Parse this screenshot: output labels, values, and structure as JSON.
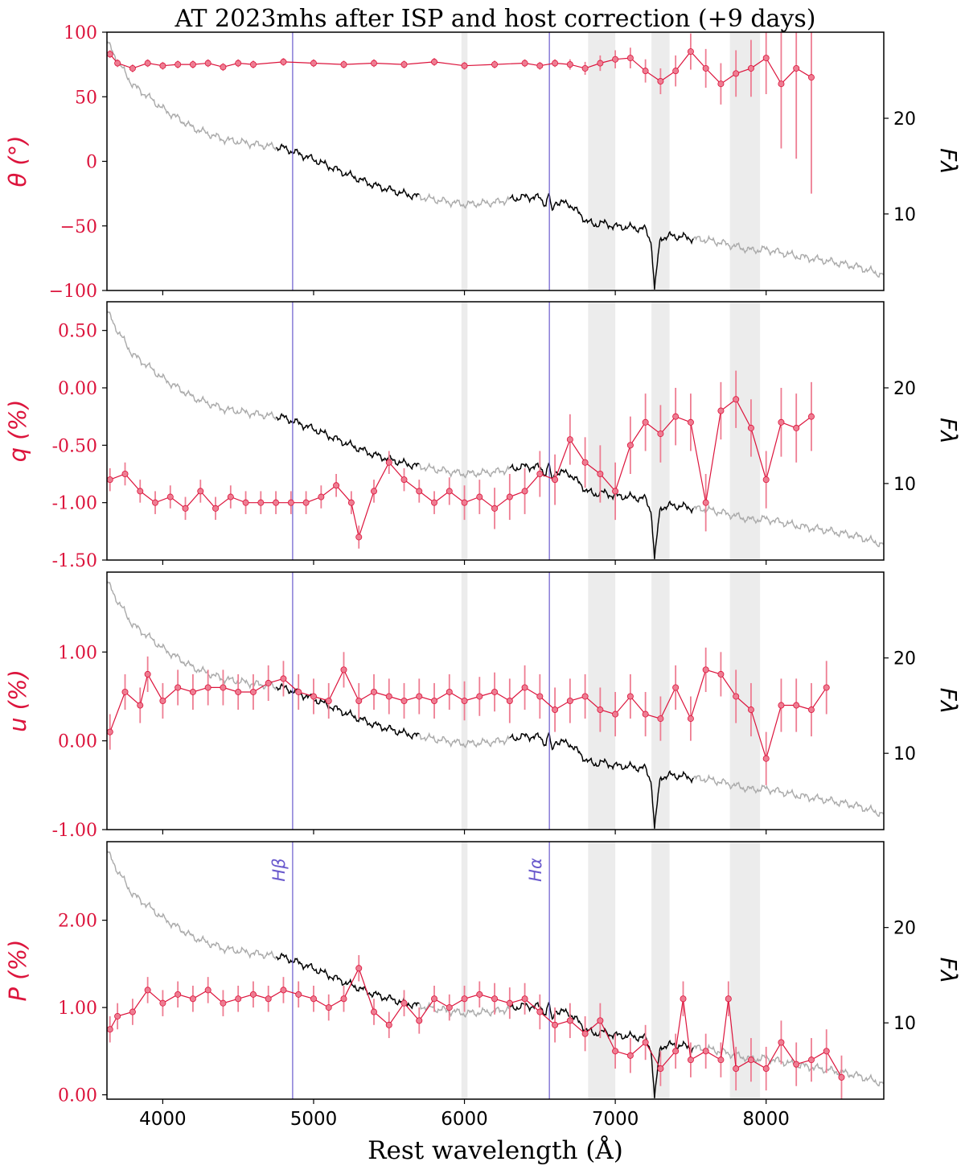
{
  "chart_data": {
    "type": "line",
    "title": "AT 2023mhs after ISP and host correction (+9 days)",
    "xlabel": "Rest wavelength (Å)",
    "xlim": [
      3630,
      8780
    ],
    "xticks": [
      4000,
      5000,
      6000,
      7000,
      8000
    ],
    "xtick_labels": [
      "4000",
      "5000",
      "6000",
      "7000",
      "8000"
    ],
    "colors": {
      "pol": "#dc143c",
      "pol_err": "#ee7d92",
      "flux_black": "#000000",
      "flux_gray": "#aaaaaa",
      "lines": "#6a5acd",
      "band": "#ececec"
    },
    "line_markers": [
      {
        "label": "Hβ",
        "wavelength": 4861
      },
      {
        "label": "Hα",
        "wavelength": 6563
      }
    ],
    "shaded_bands": [
      [
        5980,
        6020
      ],
      [
        6820,
        7000
      ],
      [
        7240,
        7360
      ],
      [
        7760,
        7960
      ]
    ],
    "flux_axis": {
      "label": "Fλ",
      "ylim": [
        2,
        29
      ],
      "ticks": [
        10,
        20
      ],
      "tick_labels": [
        "10",
        "20"
      ],
      "black_ranges": [
        [
          4750,
          5700
        ],
        [
          6300,
          7520
        ]
      ],
      "x": [
        3630,
        3700,
        3800,
        3900,
        4000,
        4200,
        4400,
        4600,
        4800,
        5000,
        5200,
        5400,
        5600,
        5800,
        6000,
        6200,
        6400,
        6500,
        6540,
        6560,
        6580,
        6600,
        6700,
        6800,
        6860,
        6900,
        7000,
        7100,
        7200,
        7240,
        7260,
        7280,
        7300,
        7360,
        7450,
        7520,
        7600,
        7700,
        7800,
        7900,
        8000,
        8200,
        8400,
        8600,
        8780
      ],
      "y": [
        28.0,
        26.0,
        23.5,
        22.3,
        21.0,
        19.0,
        17.8,
        17.3,
        16.9,
        15.7,
        14.3,
        13.0,
        12.1,
        11.5,
        11.0,
        11.2,
        11.8,
        11.7,
        11.0,
        12.2,
        10.0,
        11.3,
        11.0,
        9.4,
        8.8,
        9.1,
        8.7,
        8.6,
        8.4,
        7.0,
        2.0,
        5.0,
        7.5,
        7.7,
        7.6,
        7.4,
        7.3,
        7.0,
        6.6,
        6.2,
        6.3,
        5.6,
        5.1,
        4.5,
        3.6
      ]
    },
    "series": [
      {
        "ylabel": "θ (°)",
        "ylim": [
          -100,
          100
        ],
        "yticks": [
          100,
          50,
          0,
          -50,
          -100
        ],
        "ytick_labels": [
          "100",
          "50",
          "0",
          "−50",
          "−100"
        ],
        "err": [
          3,
          3,
          3,
          3,
          3,
          3,
          3,
          3,
          3,
          3,
          3,
          3,
          3,
          3,
          3,
          3,
          3,
          3,
          3,
          3,
          3,
          3,
          4,
          5,
          6,
          7,
          8,
          9,
          10,
          12,
          14,
          15,
          16,
          18,
          22,
          28,
          50,
          70,
          90
        ],
        "x": [
          3650,
          3700,
          3800,
          3900,
          4000,
          4100,
          4200,
          4300,
          4400,
          4500,
          4600,
          4800,
          5000,
          5200,
          5400,
          5600,
          5800,
          6000,
          6200,
          6400,
          6500,
          6600,
          6700,
          6800,
          6900,
          7000,
          7100,
          7200,
          7300,
          7400,
          7500,
          7600,
          7700,
          7800,
          7900,
          8000,
          8100,
          8200,
          8300
        ],
        "y": [
          83,
          76,
          72,
          76,
          74,
          75,
          75,
          76,
          73,
          76,
          75,
          77,
          76,
          75,
          76,
          75,
          77,
          74,
          75,
          76,
          74,
          76,
          75,
          72,
          76,
          79,
          80,
          70,
          62,
          70,
          85,
          72,
          60,
          68,
          72,
          80,
          60,
          72,
          65
        ]
      },
      {
        "ylabel": "q (%)",
        "ylim": [
          -1.5,
          0.75
        ],
        "yticks": [
          0.5,
          0.0,
          -0.5,
          -1.0,
          -1.5
        ],
        "ytick_labels": [
          "0.50",
          "0.00",
          "-0.50",
          "-1.00",
          "-1.50"
        ],
        "err": [
          0.1,
          0.1,
          0.1,
          0.1,
          0.1,
          0.1,
          0.1,
          0.1,
          0.1,
          0.1,
          0.1,
          0.1,
          0.1,
          0.1,
          0.1,
          0.1,
          0.1,
          0.1,
          0.1,
          0.1,
          0.1,
          0.1,
          0.1,
          0.12,
          0.15,
          0.15,
          0.18,
          0.2,
          0.2,
          0.2,
          0.22,
          0.22,
          0.22,
          0.25,
          0.25,
          0.25,
          0.25,
          0.25,
          0.25,
          0.25,
          0.25,
          0.25,
          0.25,
          0.25,
          0.25,
          0.3,
          0.3,
          0.3
        ],
        "x": [
          3650,
          3750,
          3850,
          3950,
          4050,
          4150,
          4250,
          4350,
          4450,
          4550,
          4650,
          4750,
          4850,
          4950,
          5050,
          5150,
          5250,
          5300,
          5400,
          5500,
          5600,
          5700,
          5800,
          5900,
          6000,
          6100,
          6200,
          6300,
          6400,
          6500,
          6600,
          6700,
          6800,
          6900,
          7000,
          7100,
          7200,
          7300,
          7400,
          7500,
          7600,
          7700,
          7800,
          7900,
          8000,
          8100,
          8200,
          8300
        ],
        "y": [
          -0.8,
          -0.75,
          -0.9,
          -1.0,
          -0.95,
          -1.05,
          -0.9,
          -1.05,
          -0.95,
          -1.0,
          -1.0,
          -1.0,
          -1.0,
          -1.0,
          -0.95,
          -0.85,
          -1.0,
          -1.3,
          -0.9,
          -0.65,
          -0.8,
          -0.9,
          -1.0,
          -0.9,
          -1.0,
          -0.95,
          -1.05,
          -0.95,
          -0.9,
          -0.75,
          -0.8,
          -0.45,
          -0.65,
          -0.75,
          -0.9,
          -0.5,
          -0.3,
          -0.4,
          -0.25,
          -0.3,
          -1.0,
          -0.2,
          -0.1,
          -0.35,
          -0.8,
          -0.3,
          -0.35,
          -0.25
        ]
      },
      {
        "ylabel": "u (%)",
        "ylim": [
          -1.0,
          1.9
        ],
        "yticks": [
          1.0,
          0.0,
          -1.0
        ],
        "ytick_labels": [
          "1.00",
          "0.00",
          "-1.00"
        ],
        "err": [
          0.2,
          0.2,
          0.2,
          0.2,
          0.2,
          0.2,
          0.2,
          0.2,
          0.2,
          0.2,
          0.2,
          0.2,
          0.2,
          0.2,
          0.2,
          0.2,
          0.2,
          0.2,
          0.2,
          0.2,
          0.2,
          0.2,
          0.2,
          0.2,
          0.22,
          0.22,
          0.22,
          0.25,
          0.25,
          0.25,
          0.25,
          0.25,
          0.25,
          0.25,
          0.25,
          0.25,
          0.25,
          0.25,
          0.25,
          0.25,
          0.25,
          0.25,
          0.3,
          0.3,
          0.3,
          0.3,
          0.3,
          0.3,
          0.3
        ],
        "x": [
          3650,
          3750,
          3850,
          3900,
          4000,
          4100,
          4200,
          4300,
          4400,
          4500,
          4600,
          4700,
          4800,
          4900,
          5000,
          5100,
          5200,
          5300,
          5400,
          5500,
          5600,
          5700,
          5800,
          5900,
          6000,
          6100,
          6200,
          6300,
          6400,
          6500,
          6600,
          6700,
          6800,
          6900,
          7000,
          7100,
          7200,
          7300,
          7400,
          7500,
          7600,
          7700,
          7800,
          7900,
          8000,
          8100,
          8200,
          8300,
          8400
        ],
        "y": [
          0.1,
          0.55,
          0.4,
          0.75,
          0.45,
          0.6,
          0.55,
          0.6,
          0.6,
          0.55,
          0.55,
          0.65,
          0.7,
          0.55,
          0.5,
          0.45,
          0.8,
          0.45,
          0.55,
          0.5,
          0.45,
          0.5,
          0.45,
          0.55,
          0.45,
          0.5,
          0.55,
          0.45,
          0.6,
          0.5,
          0.35,
          0.45,
          0.5,
          0.35,
          0.3,
          0.5,
          0.3,
          0.25,
          0.6,
          0.25,
          0.8,
          0.75,
          0.5,
          0.35,
          -0.2,
          0.4,
          0.4,
          0.35,
          0.6
        ]
      },
      {
        "ylabel": "P (%)",
        "ylim": [
          -0.05,
          2.9
        ],
        "yticks": [
          2.0,
          1.0,
          0.0
        ],
        "ytick_labels": [
          "2.00",
          "1.00",
          "0.00"
        ],
        "err": [
          0.15,
          0.15,
          0.15,
          0.15,
          0.15,
          0.15,
          0.15,
          0.15,
          0.15,
          0.15,
          0.15,
          0.15,
          0.15,
          0.15,
          0.15,
          0.15,
          0.15,
          0.15,
          0.15,
          0.15,
          0.15,
          0.15,
          0.15,
          0.15,
          0.15,
          0.15,
          0.18,
          0.18,
          0.18,
          0.2,
          0.2,
          0.2,
          0.2,
          0.2,
          0.2,
          0.2,
          0.2,
          0.2,
          0.2,
          0.2,
          0.2,
          0.2,
          0.2,
          0.2,
          0.25,
          0.25,
          0.25,
          0.25,
          0.25,
          0.25,
          0.25,
          0.25
        ],
        "x": [
          3650,
          3700,
          3800,
          3900,
          4000,
          4100,
          4200,
          4300,
          4400,
          4500,
          4600,
          4700,
          4800,
          4900,
          5000,
          5100,
          5200,
          5300,
          5400,
          5500,
          5600,
          5700,
          5800,
          5900,
          6000,
          6100,
          6200,
          6300,
          6400,
          6500,
          6600,
          6700,
          6800,
          6900,
          7000,
          7100,
          7200,
          7300,
          7400,
          7450,
          7500,
          7600,
          7700,
          7750,
          7800,
          7900,
          8000,
          8100,
          8200,
          8300,
          8400,
          8500
        ],
        "y": [
          0.75,
          0.9,
          0.95,
          1.2,
          1.05,
          1.15,
          1.1,
          1.2,
          1.05,
          1.1,
          1.15,
          1.1,
          1.2,
          1.15,
          1.1,
          1.0,
          1.1,
          1.45,
          0.95,
          0.8,
          1.05,
          0.85,
          1.1,
          1.0,
          1.1,
          1.15,
          1.1,
          1.05,
          1.1,
          0.95,
          0.8,
          0.85,
          0.7,
          0.85,
          0.5,
          0.45,
          0.6,
          0.3,
          0.5,
          1.1,
          0.4,
          0.5,
          0.4,
          1.1,
          0.3,
          0.4,
          0.3,
          0.6,
          0.35,
          0.4,
          0.5,
          0.2
        ]
      }
    ]
  }
}
